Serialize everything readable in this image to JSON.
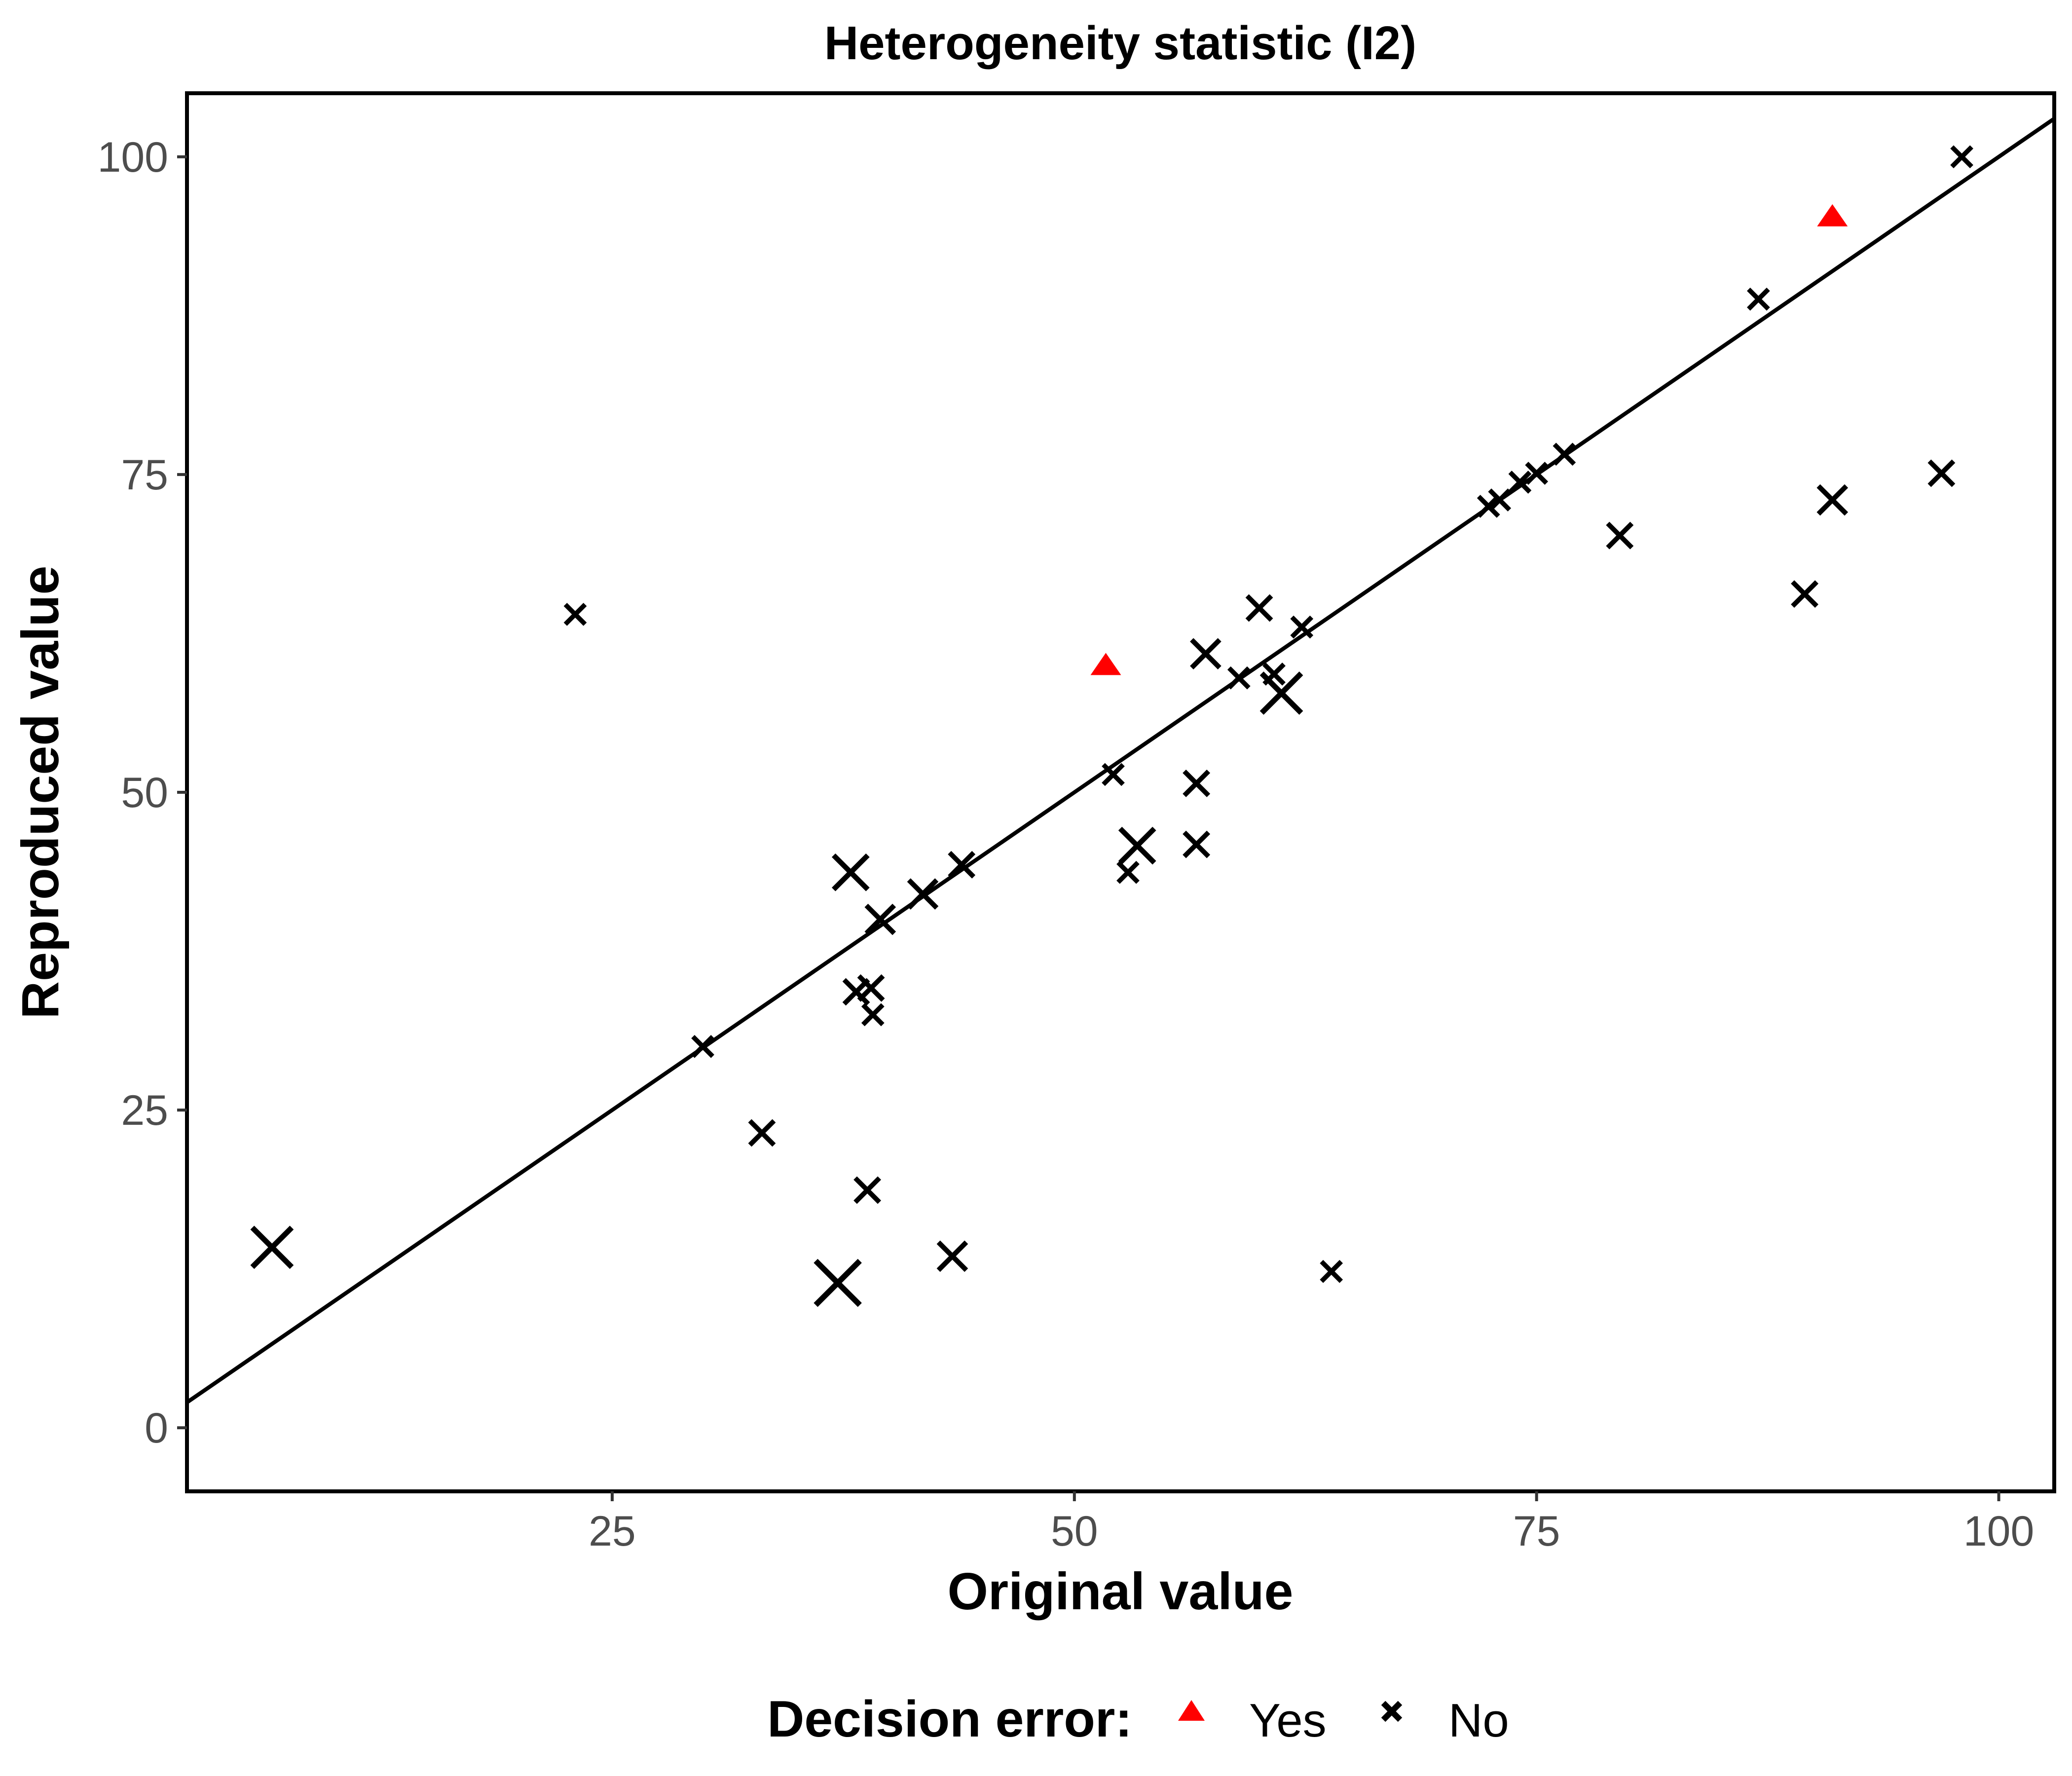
{
  "chart_data": {
    "type": "scatter",
    "title": "Heterogeneity statistic (I2)",
    "xlabel": "Original value",
    "ylabel": "Reproduced value",
    "xlim": [
      2,
      103
    ],
    "ylim": [
      -5,
      105
    ],
    "x_ticks": [
      25,
      50,
      75,
      100
    ],
    "y_ticks": [
      0,
      25,
      50,
      75,
      100
    ],
    "grid": false,
    "reference_line": {
      "type": "identity",
      "description": "y = x"
    },
    "legend": {
      "title": "Decision error:",
      "placement": "bottom",
      "entries": [
        {
          "label": "Yes",
          "marker": "triangle",
          "color": "#ff0000"
        },
        {
          "label": "No",
          "marker": "cross",
          "color": "#000000"
        }
      ]
    },
    "series": [
      {
        "name": "Yes",
        "marker": "triangle",
        "color": "#ff0000",
        "points": [
          {
            "x": 51.7,
            "y": 60.0
          },
          {
            "x": 91.0,
            "y": 95.3
          }
        ]
      },
      {
        "name": "No",
        "marker": "cross",
        "color": "#000000",
        "points": [
          {
            "x": 6.6,
            "y": 14.2,
            "size": 4
          },
          {
            "x": 23.0,
            "y": 64.0,
            "size": 1
          },
          {
            "x": 29.9,
            "y": 30.0,
            "size": 1
          },
          {
            "x": 33.1,
            "y": 23.2,
            "size": 1.5
          },
          {
            "x": 37.2,
            "y": 11.4,
            "size": 5
          },
          {
            "x": 37.9,
            "y": 43.7,
            "size": 3
          },
          {
            "x": 38.2,
            "y": 34.3,
            "size": 1.5
          },
          {
            "x": 38.8,
            "y": 18.7,
            "size": 1.5
          },
          {
            "x": 39.0,
            "y": 34.6,
            "size": 1.5
          },
          {
            "x": 39.1,
            "y": 32.5,
            "size": 1
          },
          {
            "x": 39.5,
            "y": 40.0,
            "size": 2
          },
          {
            "x": 41.8,
            "y": 42.0,
            "size": 2
          },
          {
            "x": 43.4,
            "y": 13.5,
            "size": 2
          },
          {
            "x": 43.9,
            "y": 44.3,
            "size": 1.5
          },
          {
            "x": 52.1,
            "y": 51.4,
            "size": 1
          },
          {
            "x": 52.9,
            "y": 43.7,
            "size": 1
          },
          {
            "x": 53.4,
            "y": 45.8,
            "size": 3
          },
          {
            "x": 56.6,
            "y": 50.7,
            "size": 1.5
          },
          {
            "x": 56.6,
            "y": 45.9,
            "size": 1.5
          },
          {
            "x": 57.1,
            "y": 60.9,
            "size": 2
          },
          {
            "x": 58.9,
            "y": 59.0,
            "size": 1
          },
          {
            "x": 60.0,
            "y": 64.5,
            "size": 1.5
          },
          {
            "x": 60.8,
            "y": 59.3,
            "size": 1
          },
          {
            "x": 61.2,
            "y": 57.8,
            "size": 4
          },
          {
            "x": 62.3,
            "y": 63.0,
            "size": 1
          },
          {
            "x": 63.9,
            "y": 12.3,
            "size": 1
          },
          {
            "x": 72.4,
            "y": 72.5,
            "size": 1
          },
          {
            "x": 73.0,
            "y": 73.0,
            "size": 1
          },
          {
            "x": 74.1,
            "y": 74.4,
            "size": 1
          },
          {
            "x": 75.0,
            "y": 75.1,
            "size": 1
          },
          {
            "x": 76.5,
            "y": 76.6,
            "size": 1
          },
          {
            "x": 79.5,
            "y": 70.2,
            "size": 1.5
          },
          {
            "x": 87.0,
            "y": 88.8,
            "size": 1
          },
          {
            "x": 89.5,
            "y": 65.6,
            "size": 1.5
          },
          {
            "x": 91.0,
            "y": 73.0,
            "size": 2
          },
          {
            "x": 96.9,
            "y": 75.1,
            "size": 1.5
          },
          {
            "x": 98.0,
            "y": 100.0,
            "size": 1
          }
        ]
      }
    ]
  }
}
